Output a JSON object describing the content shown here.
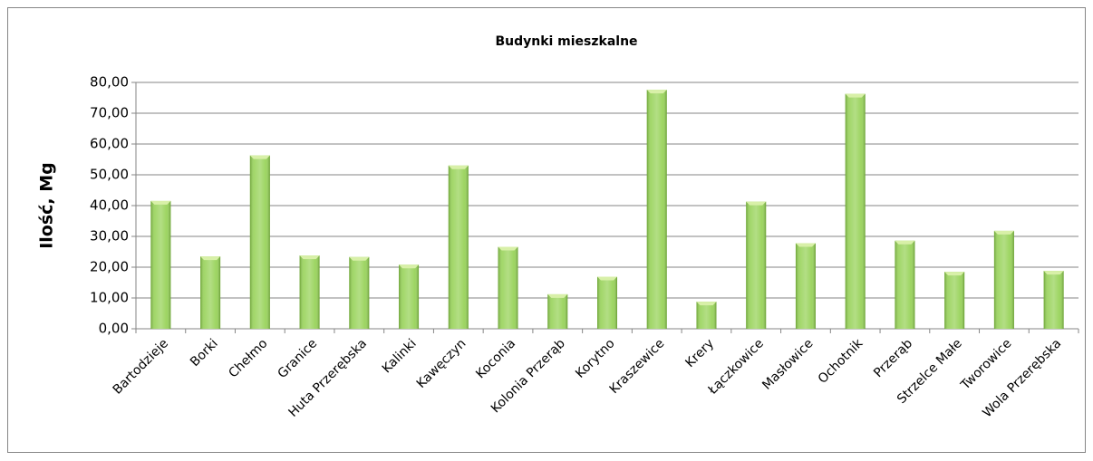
{
  "chart_data": {
    "type": "bar",
    "title": "Budynki mieszkalne",
    "y_label": "Ilość, Mg",
    "categories": [
      "Bartodzieje",
      "Borki",
      "Chełmo",
      "Granice",
      "Huta Przerębska",
      "Kalinki",
      "Kawęczyn",
      "Koconia",
      "Kolonia Przerąb",
      "Korytno",
      "Kraszewice",
      "Krery",
      "Łączkowice",
      "Masłowice",
      "Ochotnik",
      "Przerąb",
      "Strzelce Małe",
      "Tworowice",
      "Wola Przerębska"
    ],
    "values": [
      41.5,
      23.5,
      56.3,
      23.8,
      23.3,
      20.8,
      53.0,
      26.6,
      11.2,
      16.9,
      77.6,
      8.8,
      41.3,
      27.8,
      76.3,
      28.6,
      18.5,
      31.8,
      18.8
    ],
    "color": "#92d050",
    "ylim": [
      0,
      80
    ],
    "yticks": [
      {
        "value": 0,
        "label": "0,00"
      },
      {
        "value": 10,
        "label": "10,00"
      },
      {
        "value": 20,
        "label": "20,00"
      },
      {
        "value": 30,
        "label": "30,00"
      },
      {
        "value": 40,
        "label": "40,00"
      },
      {
        "value": 50,
        "label": "50,00"
      },
      {
        "value": 60,
        "label": "60,00"
      },
      {
        "value": 70,
        "label": "70,00"
      },
      {
        "value": 80,
        "label": "80,00"
      }
    ],
    "grid": true
  }
}
